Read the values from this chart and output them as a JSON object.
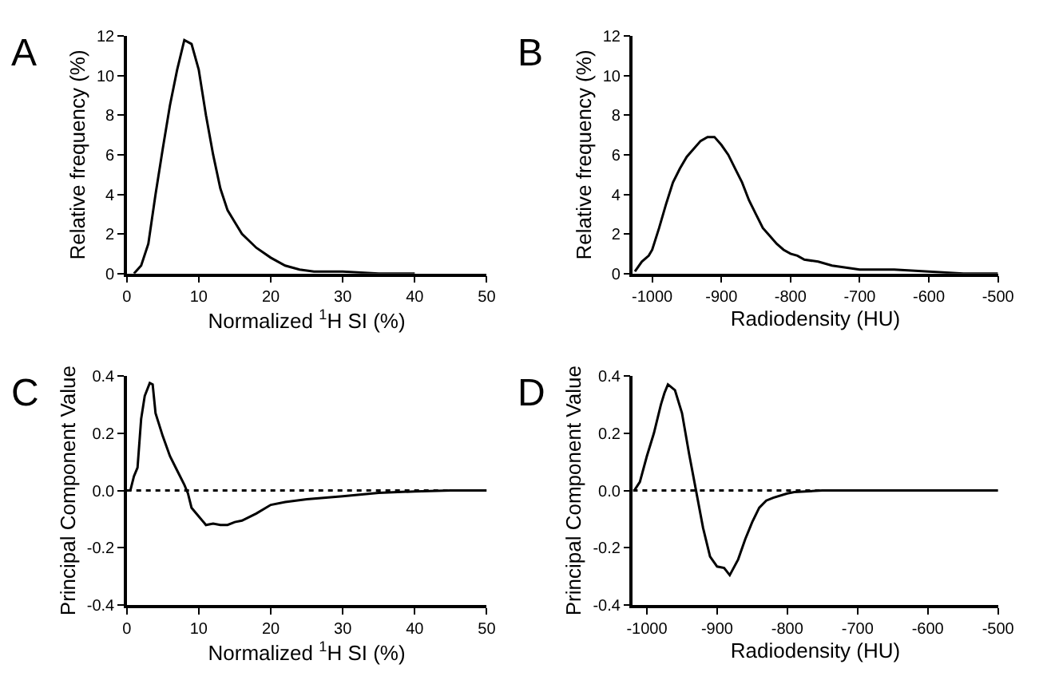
{
  "chart_data": [
    {
      "type": "line",
      "title": "A",
      "xlabel": "Normalized $^{1}$H SI (%)",
      "ylabel": "Relative frequency (%)",
      "xlim": [
        0,
        50
      ],
      "xticks": [
        0,
        10,
        20,
        30,
        40,
        50
      ],
      "ylim": [
        0,
        12
      ],
      "yticks": [
        0,
        2,
        4,
        6,
        8,
        10,
        12
      ],
      "series": [
        {
          "color": "#000000",
          "x": [
            1,
            2,
            3,
            4,
            5,
            6,
            7,
            8,
            9,
            10,
            11,
            12,
            13,
            14,
            15,
            16,
            18,
            20,
            22,
            24,
            26,
            30,
            35,
            40
          ],
          "values": [
            0,
            0.4,
            1.5,
            4,
            6.3,
            8.5,
            10.3,
            11.8,
            11.6,
            10.3,
            8,
            6,
            4.3,
            3.2,
            2.6,
            2,
            1.3,
            0.8,
            0.4,
            0.2,
            0.1,
            0.1,
            0,
            0
          ]
        }
      ]
    },
    {
      "type": "line",
      "title": "B",
      "xlabel": "Radiodensity (HU)",
      "ylabel": "Relative frequency (%)",
      "xlim": [
        -1028,
        -500
      ],
      "xticks": [
        -1000,
        -900,
        -800,
        -700,
        -600,
        -500
      ],
      "ylim": [
        0,
        12
      ],
      "yticks": [
        0,
        2,
        4,
        6,
        8,
        10,
        12
      ],
      "series": [
        {
          "color": "#000000",
          "x": [
            -1025,
            -1015,
            -1005,
            -1000,
            -990,
            -980,
            -970,
            -960,
            -950,
            -940,
            -930,
            -920,
            -910,
            -900,
            -890,
            -880,
            -870,
            -860,
            -850,
            -840,
            -830,
            -820,
            -810,
            -800,
            -790,
            -780,
            -760,
            -740,
            -720,
            -700,
            -650,
            -600,
            -550,
            -500
          ],
          "values": [
            0.1,
            0.6,
            0.9,
            1.2,
            2.3,
            3.5,
            4.6,
            5.3,
            5.9,
            6.3,
            6.7,
            6.9,
            6.9,
            6.5,
            6.0,
            5.3,
            4.6,
            3.7,
            3.0,
            2.3,
            1.9,
            1.5,
            1.2,
            1.0,
            0.9,
            0.7,
            0.6,
            0.4,
            0.3,
            0.2,
            0.2,
            0.1,
            0.0,
            0.0
          ]
        }
      ]
    },
    {
      "type": "line",
      "title": "C",
      "xlabel": "Normalized $^{1}$H SI (%)",
      "ylabel": "Principal Component Value",
      "xlim": [
        0,
        50
      ],
      "xticks": [
        0,
        10,
        20,
        30,
        40,
        50
      ],
      "ylim": [
        -0.4,
        0.4
      ],
      "yticks": [
        -0.4,
        -0.2,
        {
          "value": 0,
          "label": "0.0"
        },
        0.2,
        0.4
      ],
      "ref_lines": [
        {
          "axis": "y",
          "value": 0,
          "line_style": "dotted",
          "color": "#000000"
        }
      ],
      "series": [
        {
          "color": "#000000",
          "x": [
            0.5,
            1,
            1.5,
            2,
            2.5,
            3.2,
            3.6,
            4,
            5,
            6,
            7,
            8,
            8.5,
            9,
            10,
            11,
            12,
            13,
            14,
            15,
            16,
            18,
            20,
            22,
            25,
            30,
            35,
            40,
            45,
            50
          ],
          "values": [
            0,
            0.05,
            0.08,
            0.25,
            0.33,
            0.375,
            0.37,
            0.27,
            0.19,
            0.12,
            0.07,
            0.02,
            -0.01,
            -0.06,
            -0.09,
            -0.12,
            -0.115,
            -0.12,
            -0.12,
            -0.11,
            -0.105,
            -0.08,
            -0.05,
            -0.04,
            -0.03,
            -0.02,
            -0.008,
            -0.003,
            0,
            0
          ]
        }
      ]
    },
    {
      "type": "line",
      "title": "D",
      "xlabel": "Radiodensity (HU)",
      "ylabel": "Principal Component Value",
      "xlim": [
        -1020,
        -500
      ],
      "xticks": [
        -1000,
        -900,
        -800,
        -700,
        -600,
        -500
      ],
      "ylim": [
        -0.4,
        0.4
      ],
      "yticks": [
        -0.4,
        -0.2,
        {
          "value": 0,
          "label": "0.0"
        },
        0.2,
        0.4
      ],
      "ref_lines": [
        {
          "axis": "y",
          "value": 0,
          "line_style": "dotted",
          "color": "#000000"
        }
      ],
      "series": [
        {
          "color": "#000000",
          "x": [
            -1018,
            -1010,
            -1000,
            -990,
            -980,
            -975,
            -970,
            -960,
            -950,
            -940,
            -930,
            -920,
            -910,
            -900,
            -890,
            -882,
            -870,
            -860,
            -850,
            -840,
            -830,
            -820,
            -800,
            -790,
            -750,
            -700,
            -600,
            -500
          ],
          "values": [
            0.0,
            0.03,
            0.12,
            0.2,
            0.3,
            0.34,
            0.37,
            0.35,
            0.27,
            0.13,
            0.0,
            -0.13,
            -0.23,
            -0.265,
            -0.27,
            -0.295,
            -0.24,
            -0.17,
            -0.11,
            -0.06,
            -0.035,
            -0.025,
            -0.01,
            -0.005,
            0,
            0,
            0,
            0
          ]
        }
      ]
    }
  ]
}
